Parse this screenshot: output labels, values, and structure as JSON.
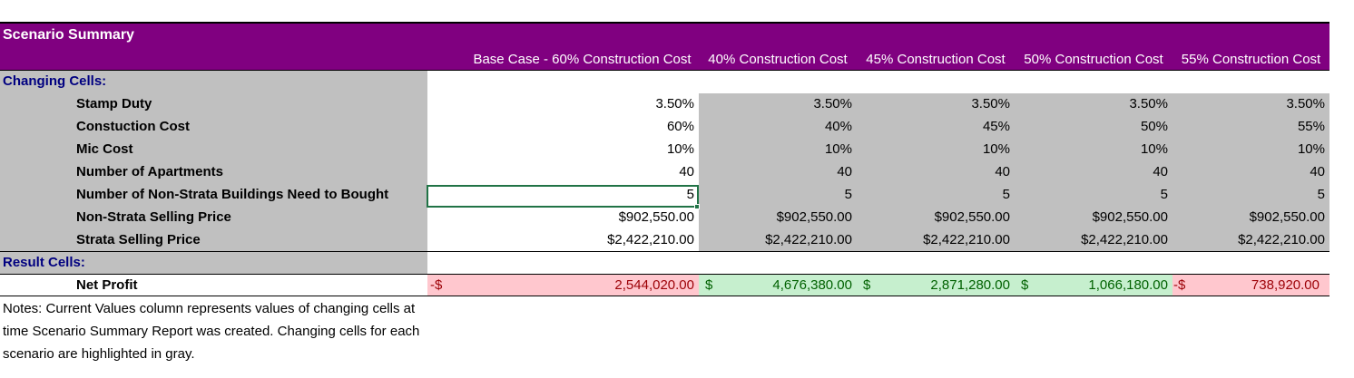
{
  "report": {
    "title": "Scenario Summary",
    "column_headers": [
      "Base Case - 60% Construction Cost",
      "40% Construction Cost",
      "45% Construction Cost",
      "50% Construction Cost",
      "55% Construction Cost"
    ],
    "changing_cells_label": "Changing Cells:",
    "result_cells_label": "Result Cells:",
    "rows": [
      {
        "label": "Stamp Duty",
        "values": [
          "3.50%",
          "3.50%",
          "3.50%",
          "3.50%",
          "3.50%"
        ]
      },
      {
        "label": "Constuction Cost",
        "values": [
          "60%",
          "40%",
          "45%",
          "50%",
          "55%"
        ]
      },
      {
        "label": "Mic Cost",
        "values": [
          "10%",
          "10%",
          "10%",
          "10%",
          "10%"
        ]
      },
      {
        "label": "Number of Apartments",
        "values": [
          "40",
          "40",
          "40",
          "40",
          "40"
        ]
      },
      {
        "label": "Number of Non-Strata Buildings Need to Bought",
        "values": [
          "5",
          "5",
          "5",
          "5",
          "5"
        ]
      },
      {
        "label": "Non-Strata Selling Price",
        "values": [
          "$902,550.00",
          "$902,550.00",
          "$902,550.00",
          "$902,550.00",
          "$902,550.00"
        ]
      },
      {
        "label": "Strata Selling Price",
        "values": [
          "$2,422,210.00",
          "$2,422,210.00",
          "$2,422,210.00",
          "$2,422,210.00",
          "$2,422,210.00"
        ]
      }
    ],
    "result": {
      "label": "Net Profit",
      "cells": [
        {
          "sign": "-$",
          "value": "2,544,020.00",
          "status": "negative"
        },
        {
          "sign": "$",
          "value": "4,676,380.00",
          "status": "positive"
        },
        {
          "sign": "$",
          "value": "2,871,280.00",
          "status": "positive"
        },
        {
          "sign": "$",
          "value": "1,066,180.00",
          "status": "positive"
        },
        {
          "sign": "-$",
          "value": "738,920.00",
          "status": "negative"
        }
      ]
    },
    "notes": [
      "Notes:  Current Values column represents values of changing cells at",
      "time Scenario Summary Report was created.  Changing cells for each",
      "scenario are highlighted in gray."
    ]
  },
  "colors": {
    "header_purple": "#800080",
    "changing_gray": "#c0c0c0",
    "label_navy": "#000080",
    "negative_fill": "#ffc7ce",
    "negative_text": "#9c0006",
    "positive_fill": "#c6efce",
    "positive_text": "#006100",
    "selection_green": "#217346"
  }
}
